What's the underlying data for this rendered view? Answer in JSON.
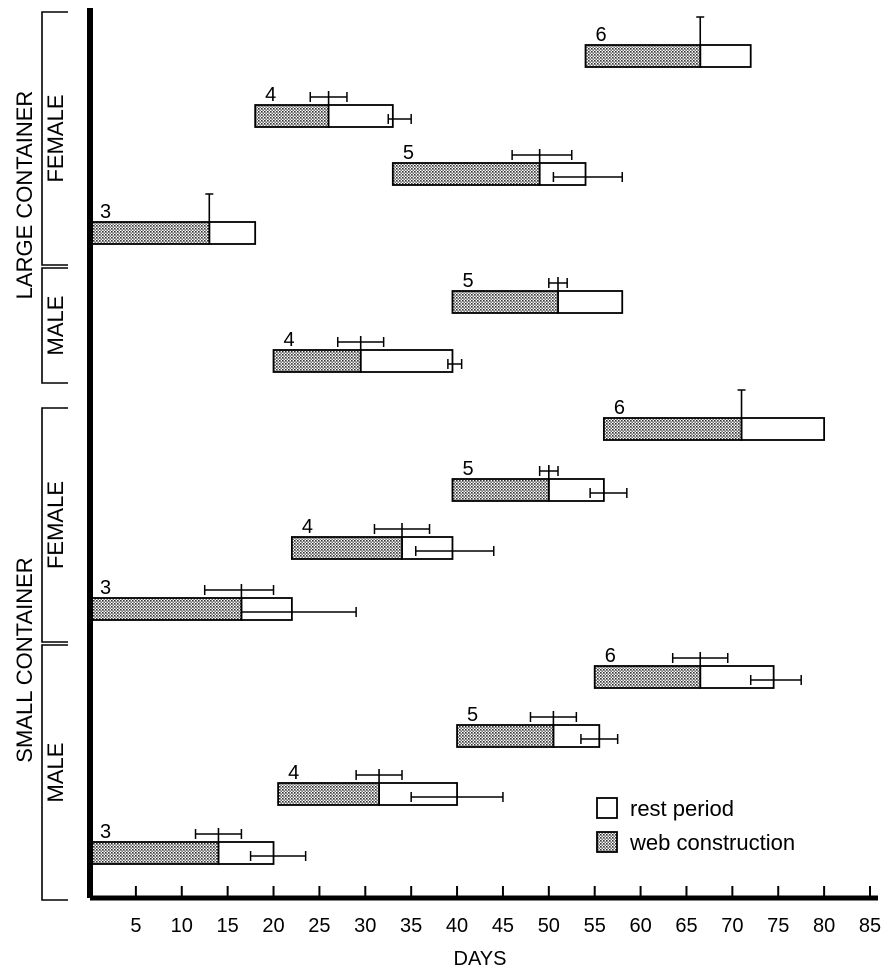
{
  "chart_data": {
    "type": "bar",
    "subtype": "stacked-horizontal-gantt",
    "xlabel": "DAYS",
    "xlim": [
      0,
      85
    ],
    "xticks": [
      5,
      10,
      15,
      20,
      25,
      30,
      35,
      40,
      45,
      50,
      55,
      60,
      65,
      70,
      75,
      80,
      85
    ],
    "grid": false,
    "legend": {
      "placement": "bottom-right",
      "entries": [
        {
          "key": "rest",
          "label": "rest period"
        },
        {
          "key": "web",
          "label": "web construction"
        }
      ]
    },
    "series": [
      {
        "key": "web",
        "name": "web construction",
        "fill": "pattern-stipple"
      },
      {
        "key": "rest",
        "name": "rest period",
        "fill": "#ffffff"
      }
    ],
    "groups": [
      {
        "label": "LARGE CONTAINER",
        "subgroups": [
          "FEMALE",
          "MALE"
        ]
      },
      {
        "label": "SMALL CONTAINER",
        "subgroups": [
          "FEMALE",
          "MALE"
        ]
      }
    ],
    "subgroups": [
      {
        "label": "FEMALE",
        "group": "LARGE CONTAINER",
        "range": [
          0,
          3
        ]
      },
      {
        "label": "MALE",
        "group": "LARGE CONTAINER",
        "range": [
          4,
          5
        ]
      },
      {
        "label": "FEMALE",
        "group": "SMALL CONTAINER",
        "range": [
          6,
          9
        ]
      },
      {
        "label": "MALE",
        "group": "SMALL CONTAINER",
        "range": [
          10,
          13
        ]
      }
    ],
    "bars": [
      {
        "group": "LARGE CONTAINER",
        "sex": "FEMALE",
        "instar": "6",
        "start": 54,
        "web_end": 66.5,
        "rest_end": 72,
        "web_err": [
          null,
          66.5
        ],
        "rest_err": null
      },
      {
        "group": "LARGE CONTAINER",
        "sex": "FEMALE",
        "instar": "5",
        "start": 33,
        "web_end": 49,
        "rest_end": 54,
        "web_err": [
          46,
          52.5
        ],
        "rest_err": [
          50.5,
          58
        ]
      },
      {
        "group": "LARGE CONTAINER",
        "sex": "FEMALE",
        "instar": "4",
        "start": 18,
        "web_end": 26,
        "rest_end": 33,
        "web_err": [
          24,
          28
        ],
        "rest_err": [
          32.5,
          35
        ]
      },
      {
        "group": "LARGE CONTAINER",
        "sex": "FEMALE",
        "instar": "3",
        "start": 0,
        "web_end": 13,
        "rest_end": 18,
        "web_err": [
          null,
          13
        ],
        "rest_err": null
      },
      {
        "group": "LARGE CONTAINER",
        "sex": "MALE",
        "instar": "5",
        "start": 39.5,
        "web_end": 51,
        "rest_end": 58,
        "web_err": [
          50,
          52
        ],
        "rest_err": null
      },
      {
        "group": "LARGE CONTAINER",
        "sex": "MALE",
        "instar": "4",
        "start": 20,
        "web_end": 29.5,
        "rest_end": 39.5,
        "web_err": [
          27,
          32
        ],
        "rest_err": [
          39,
          40.5
        ]
      },
      {
        "group": "SMALL CONTAINER",
        "sex": "FEMALE",
        "instar": "6",
        "start": 56,
        "web_end": 71,
        "rest_end": 80,
        "web_err": [
          null,
          71
        ],
        "rest_err": null
      },
      {
        "group": "SMALL CONTAINER",
        "sex": "FEMALE",
        "instar": "5",
        "start": 39.5,
        "web_end": 50,
        "rest_end": 56,
        "web_err": [
          49,
          51
        ],
        "rest_err": [
          54.5,
          58.5
        ]
      },
      {
        "group": "SMALL CONTAINER",
        "sex": "FEMALE",
        "instar": "4",
        "start": 22,
        "web_end": 34,
        "rest_end": 39.5,
        "web_err": [
          31,
          37
        ],
        "rest_err": [
          35.5,
          44
        ]
      },
      {
        "group": "SMALL CONTAINER",
        "sex": "FEMALE",
        "instar": "3",
        "start": 0,
        "web_end": 16.5,
        "rest_end": 22,
        "web_err": [
          12.5,
          20
        ],
        "rest_err": [
          16.5,
          29
        ]
      },
      {
        "group": "SMALL CONTAINER",
        "sex": "MALE",
        "instar": "6",
        "start": 55,
        "web_end": 66.5,
        "rest_end": 74.5,
        "web_err": [
          63.5,
          69.5
        ],
        "rest_err": [
          72,
          77.5
        ]
      },
      {
        "group": "SMALL CONTAINER",
        "sex": "MALE",
        "instar": "5",
        "start": 40,
        "web_end": 50.5,
        "rest_end": 55.5,
        "web_err": [
          48,
          53
        ],
        "rest_err": [
          53.5,
          57.5
        ]
      },
      {
        "group": "SMALL CONTAINER",
        "sex": "MALE",
        "instar": "4",
        "start": 20.5,
        "web_end": 31.5,
        "rest_end": 40,
        "web_err": [
          29,
          34
        ],
        "rest_err": [
          35,
          45
        ]
      },
      {
        "group": "SMALL CONTAINER",
        "sex": "MALE",
        "instar": "3",
        "start": 0,
        "web_end": 14,
        "rest_end": 20,
        "web_err": [
          11.5,
          16.5
        ],
        "rest_err": [
          17.5,
          23.5
        ]
      }
    ]
  }
}
